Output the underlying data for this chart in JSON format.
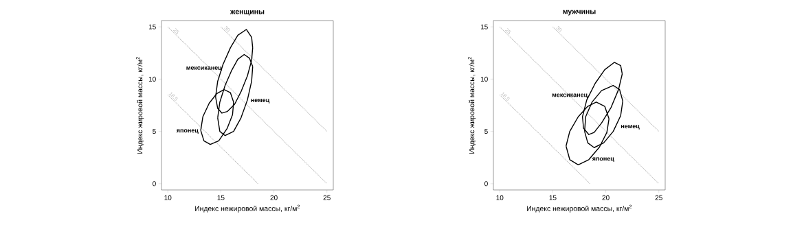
{
  "chart_data": [
    {
      "type": "line",
      "title": "женщины",
      "xlabel": "Индекс нежировой массы, кг/м$^{2}$",
      "ylabel": "Индекс жировой массы, кг/м$^{2}$",
      "xlim": [
        9.4,
        25.6
      ],
      "ylim": [
        -0.6,
        15.6
      ],
      "xticks": [
        10,
        15,
        20,
        25
      ],
      "yticks": [
        0,
        5,
        10,
        15
      ],
      "grid": false,
      "series": [
        {
          "name": "18.5",
          "color": "#bebebe",
          "line_style": "dotted",
          "x": [
            10,
            18.5
          ],
          "values": [
            8.5,
            0
          ]
        },
        {
          "name": "25",
          "color": "#bebebe",
          "line_style": "dotted",
          "x": [
            10,
            25
          ],
          "values": [
            15,
            0
          ]
        },
        {
          "name": "30",
          "color": "#bebebe",
          "line_style": "dotted",
          "x": [
            15,
            25
          ],
          "values": [
            15,
            5
          ]
        },
        {
          "name": "мексиканец",
          "color": "#000000",
          "line_style": "solid",
          "x": [
            14.5,
            14.7,
            15.2,
            15.9,
            16.6,
            17.4,
            17.9,
            18.0,
            null,
            14.5,
            14.7,
            15.1,
            15.6,
            16.3,
            16.9,
            17.5,
            17.9,
            18.0
          ],
          "values": [
            8.3,
            9.8,
            11.4,
            13.0,
            14.2,
            14.75,
            14.0,
            13.0,
            null,
            8.3,
            7.2,
            6.75,
            6.9,
            7.6,
            8.8,
            10.3,
            11.8,
            13.0
          ]
        },
        {
          "name": "немец",
          "color": "#000000",
          "line_style": "solid",
          "x": [
            14.7,
            14.9,
            15.4,
            16.0,
            16.6,
            17.2,
            17.7,
            18.0,
            null,
            14.7,
            14.9,
            15.4,
            16.2,
            16.9,
            17.5,
            17.9,
            18.0
          ],
          "values": [
            6.3,
            7.8,
            9.4,
            10.8,
            11.9,
            12.35,
            12.0,
            11.2,
            null,
            6.3,
            5.0,
            4.6,
            5.0,
            6.3,
            8.0,
            9.8,
            11.2
          ]
        },
        {
          "name": "японец",
          "color": "#000000",
          "line_style": "solid",
          "x": [
            13.1,
            13.3,
            13.9,
            14.6,
            15.3,
            15.9,
            16.2,
            null,
            13.1,
            13.4,
            14.0,
            14.8,
            15.6,
            16.1,
            16.2
          ],
          "values": [
            5.1,
            6.4,
            7.7,
            8.6,
            9.0,
            8.7,
            7.8,
            null,
            5.1,
            4.1,
            3.75,
            4.1,
            5.3,
            6.6,
            7.8
          ]
        }
      ]
    },
    {
      "type": "line",
      "title": "мужчины",
      "xlabel": "Индекс нежировой массы, кг/м$^{2}$",
      "ylabel": "Индекс жировой массы, кг/м$^{2}$",
      "xlim": [
        9.4,
        25.6
      ],
      "ylim": [
        -0.6,
        15.6
      ],
      "xticks": [
        10,
        15,
        20,
        25
      ],
      "yticks": [
        0,
        5,
        10,
        15
      ],
      "grid": false,
      "series": [
        {
          "name": "18.5",
          "color": "#bebebe",
          "line_style": "dotted",
          "x": [
            10,
            18.5
          ],
          "values": [
            8.5,
            0
          ]
        },
        {
          "name": "25",
          "color": "#bebebe",
          "line_style": "dotted",
          "x": [
            10,
            25
          ],
          "values": [
            15,
            0
          ]
        },
        {
          "name": "30",
          "color": "#bebebe",
          "line_style": "dotted",
          "x": [
            15,
            25
          ],
          "values": [
            15,
            5
          ]
        },
        {
          "name": "мексиканец",
          "color": "#000000",
          "line_style": "solid",
          "x": [
            17.8,
            18.2,
            19.0,
            19.9,
            20.8,
            21.4,
            21.55,
            null,
            17.8,
            17.9,
            18.4,
            18.9,
            19.6,
            20.5,
            21.2,
            21.55
          ],
          "values": [
            6.4,
            8.0,
            9.6,
            10.9,
            11.6,
            11.3,
            10.5,
            null,
            6.4,
            5.3,
            4.7,
            4.9,
            5.8,
            7.3,
            9.0,
            10.5
          ]
        },
        {
          "name": "немец",
          "color": "#000000",
          "line_style": "solid",
          "x": [
            18.0,
            18.1,
            18.7,
            19.6,
            20.7,
            21.3,
            21.6,
            null,
            18.0,
            18.3,
            18.9,
            19.8,
            20.7,
            21.4,
            21.6
          ],
          "values": [
            5.0,
            6.4,
            7.8,
            8.9,
            9.4,
            9.0,
            7.9,
            null,
            5.0,
            3.9,
            3.45,
            3.9,
            5.0,
            6.5,
            7.9
          ]
        },
        {
          "name": "японец",
          "color": "#000000",
          "line_style": "solid",
          "x": [
            16.25,
            16.6,
            17.4,
            18.3,
            19.1,
            19.9,
            20.3,
            null,
            16.25,
            16.6,
            17.4,
            18.4,
            19.4,
            20.1,
            20.3
          ],
          "values": [
            3.6,
            5.0,
            6.4,
            7.4,
            7.8,
            7.4,
            6.2,
            null,
            3.6,
            2.3,
            1.8,
            2.3,
            3.5,
            4.9,
            6.2
          ]
        }
      ]
    }
  ]
}
